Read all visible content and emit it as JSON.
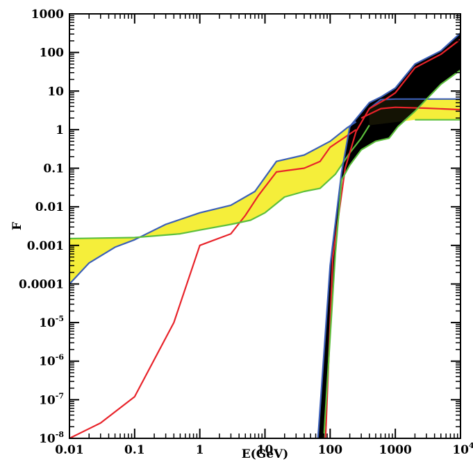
{
  "chart_data": {
    "type": "area",
    "title": "",
    "xlabel": "E(GeV)",
    "ylabel": "F",
    "xscale": "log",
    "yscale": "log",
    "xlim": [
      0.01,
      10000
    ],
    "ylim": [
      1e-08,
      1000
    ],
    "x_ticks": [
      {
        "value": 0.01,
        "label": "0.01"
      },
      {
        "value": 0.1,
        "label": "0.1"
      },
      {
        "value": 1,
        "label": "1"
      },
      {
        "value": 10,
        "label": "10"
      },
      {
        "value": 100,
        "label": "100"
      },
      {
        "value": 1000,
        "label": "1000"
      },
      {
        "value": 10000,
        "label": "10",
        "sup": "4"
      }
    ],
    "y_ticks": [
      {
        "value": 1000,
        "label": "1000"
      },
      {
        "value": 100,
        "label": "100"
      },
      {
        "value": 10,
        "label": "10"
      },
      {
        "value": 1,
        "label": "1"
      },
      {
        "value": 0.1,
        "label": "0.1"
      },
      {
        "value": 0.01,
        "label": "0.01"
      },
      {
        "value": 0.001,
        "label": "0.001"
      },
      {
        "value": 0.0001,
        "label": "0.0001"
      },
      {
        "value": 1e-05,
        "label": "10",
        "sup": "-5"
      },
      {
        "value": 1e-06,
        "label": "10",
        "sup": "-6"
      },
      {
        "value": 1e-07,
        "label": "10",
        "sup": "-7"
      },
      {
        "value": 1e-08,
        "label": "10",
        "sup": "-8"
      }
    ],
    "bands": [
      {
        "fill": "#f5ee3a",
        "upper": "yellow_upper",
        "lower": "yellow_lower"
      },
      {
        "fill": "#000000",
        "upper": "black_upper",
        "lower": "black_lower"
      }
    ],
    "series": [
      {
        "id": "yellow_upper",
        "color": "#3b5fb8",
        "x": [
          0.01,
          0.02,
          0.05,
          0.1,
          0.3,
          1,
          3,
          7,
          15,
          40,
          100,
          180,
          250
        ],
        "y": [
          0.0001,
          0.00035,
          0.0009,
          0.0014,
          0.0035,
          0.007,
          0.011,
          0.025,
          0.15,
          0.22,
          0.5,
          1.1,
          1.6
        ]
      },
      {
        "id": "yellow_mid",
        "color": "#e8232a",
        "x": [
          0.01,
          0.03,
          0.1,
          0.4,
          1,
          3,
          5,
          8,
          15,
          40,
          70,
          100,
          250
        ],
        "y": [
          1e-08,
          2.5e-08,
          1.2e-07,
          1e-05,
          0.001,
          0.002,
          0.006,
          0.02,
          0.08,
          0.1,
          0.15,
          0.35,
          1.0
        ]
      },
      {
        "id": "yellow_lower",
        "color": "#5cbf3c",
        "x": [
          0.01,
          0.1,
          0.5,
          1,
          3,
          6,
          10,
          20,
          40,
          70,
          120,
          200,
          300,
          400
        ],
        "y": [
          0.0015,
          0.0016,
          0.002,
          0.0025,
          0.0035,
          0.0045,
          0.007,
          0.018,
          0.025,
          0.03,
          0.07,
          0.25,
          0.6,
          1.3
        ]
      },
      {
        "id": "yellow_right_upper",
        "color": "#3b5fb8",
        "x": [
          400,
          600,
          1000,
          3000,
          10000
        ],
        "y": [
          3.5,
          6.0,
          6.2,
          6.2,
          6.2
        ]
      },
      {
        "id": "yellow_right_mid",
        "color": "#e8232a",
        "x": [
          300,
          600,
          1000,
          3000,
          10000
        ],
        "y": [
          2.0,
          3.5,
          3.8,
          3.6,
          3.3
        ]
      },
      {
        "id": "yellow_right_lower",
        "color": "#5cbf3c",
        "x": [
          2000,
          3000,
          10000
        ],
        "y": [
          1.8,
          1.8,
          1.8
        ]
      },
      {
        "id": "black_upper",
        "color": "#3b5fb8",
        "x": [
          65,
          100,
          150,
          200,
          400,
          600,
          1000,
          2000,
          5000,
          10000
        ],
        "y": [
          1e-08,
          0.0003,
          0.08,
          1.2,
          5,
          7,
          12,
          50,
          110,
          320
        ]
      },
      {
        "id": "black_mid",
        "color": "#e8232a",
        "x": [
          85,
          110,
          170,
          250,
          400,
          700,
          1000,
          2000,
          5000,
          10000
        ],
        "y": [
          1e-08,
          0.0005,
          0.1,
          0.9,
          3.5,
          6,
          9,
          40,
          90,
          220
        ]
      },
      {
        "id": "black_lower",
        "color": "#5cbf3c",
        "x": [
          80,
          120,
          150,
          200,
          300,
          500,
          800,
          1100,
          2000,
          5000,
          10000
        ],
        "y": [
          1e-08,
          0.0006,
          0.05,
          0.12,
          0.3,
          0.5,
          0.6,
          1.2,
          3,
          15,
          35
        ]
      }
    ]
  }
}
